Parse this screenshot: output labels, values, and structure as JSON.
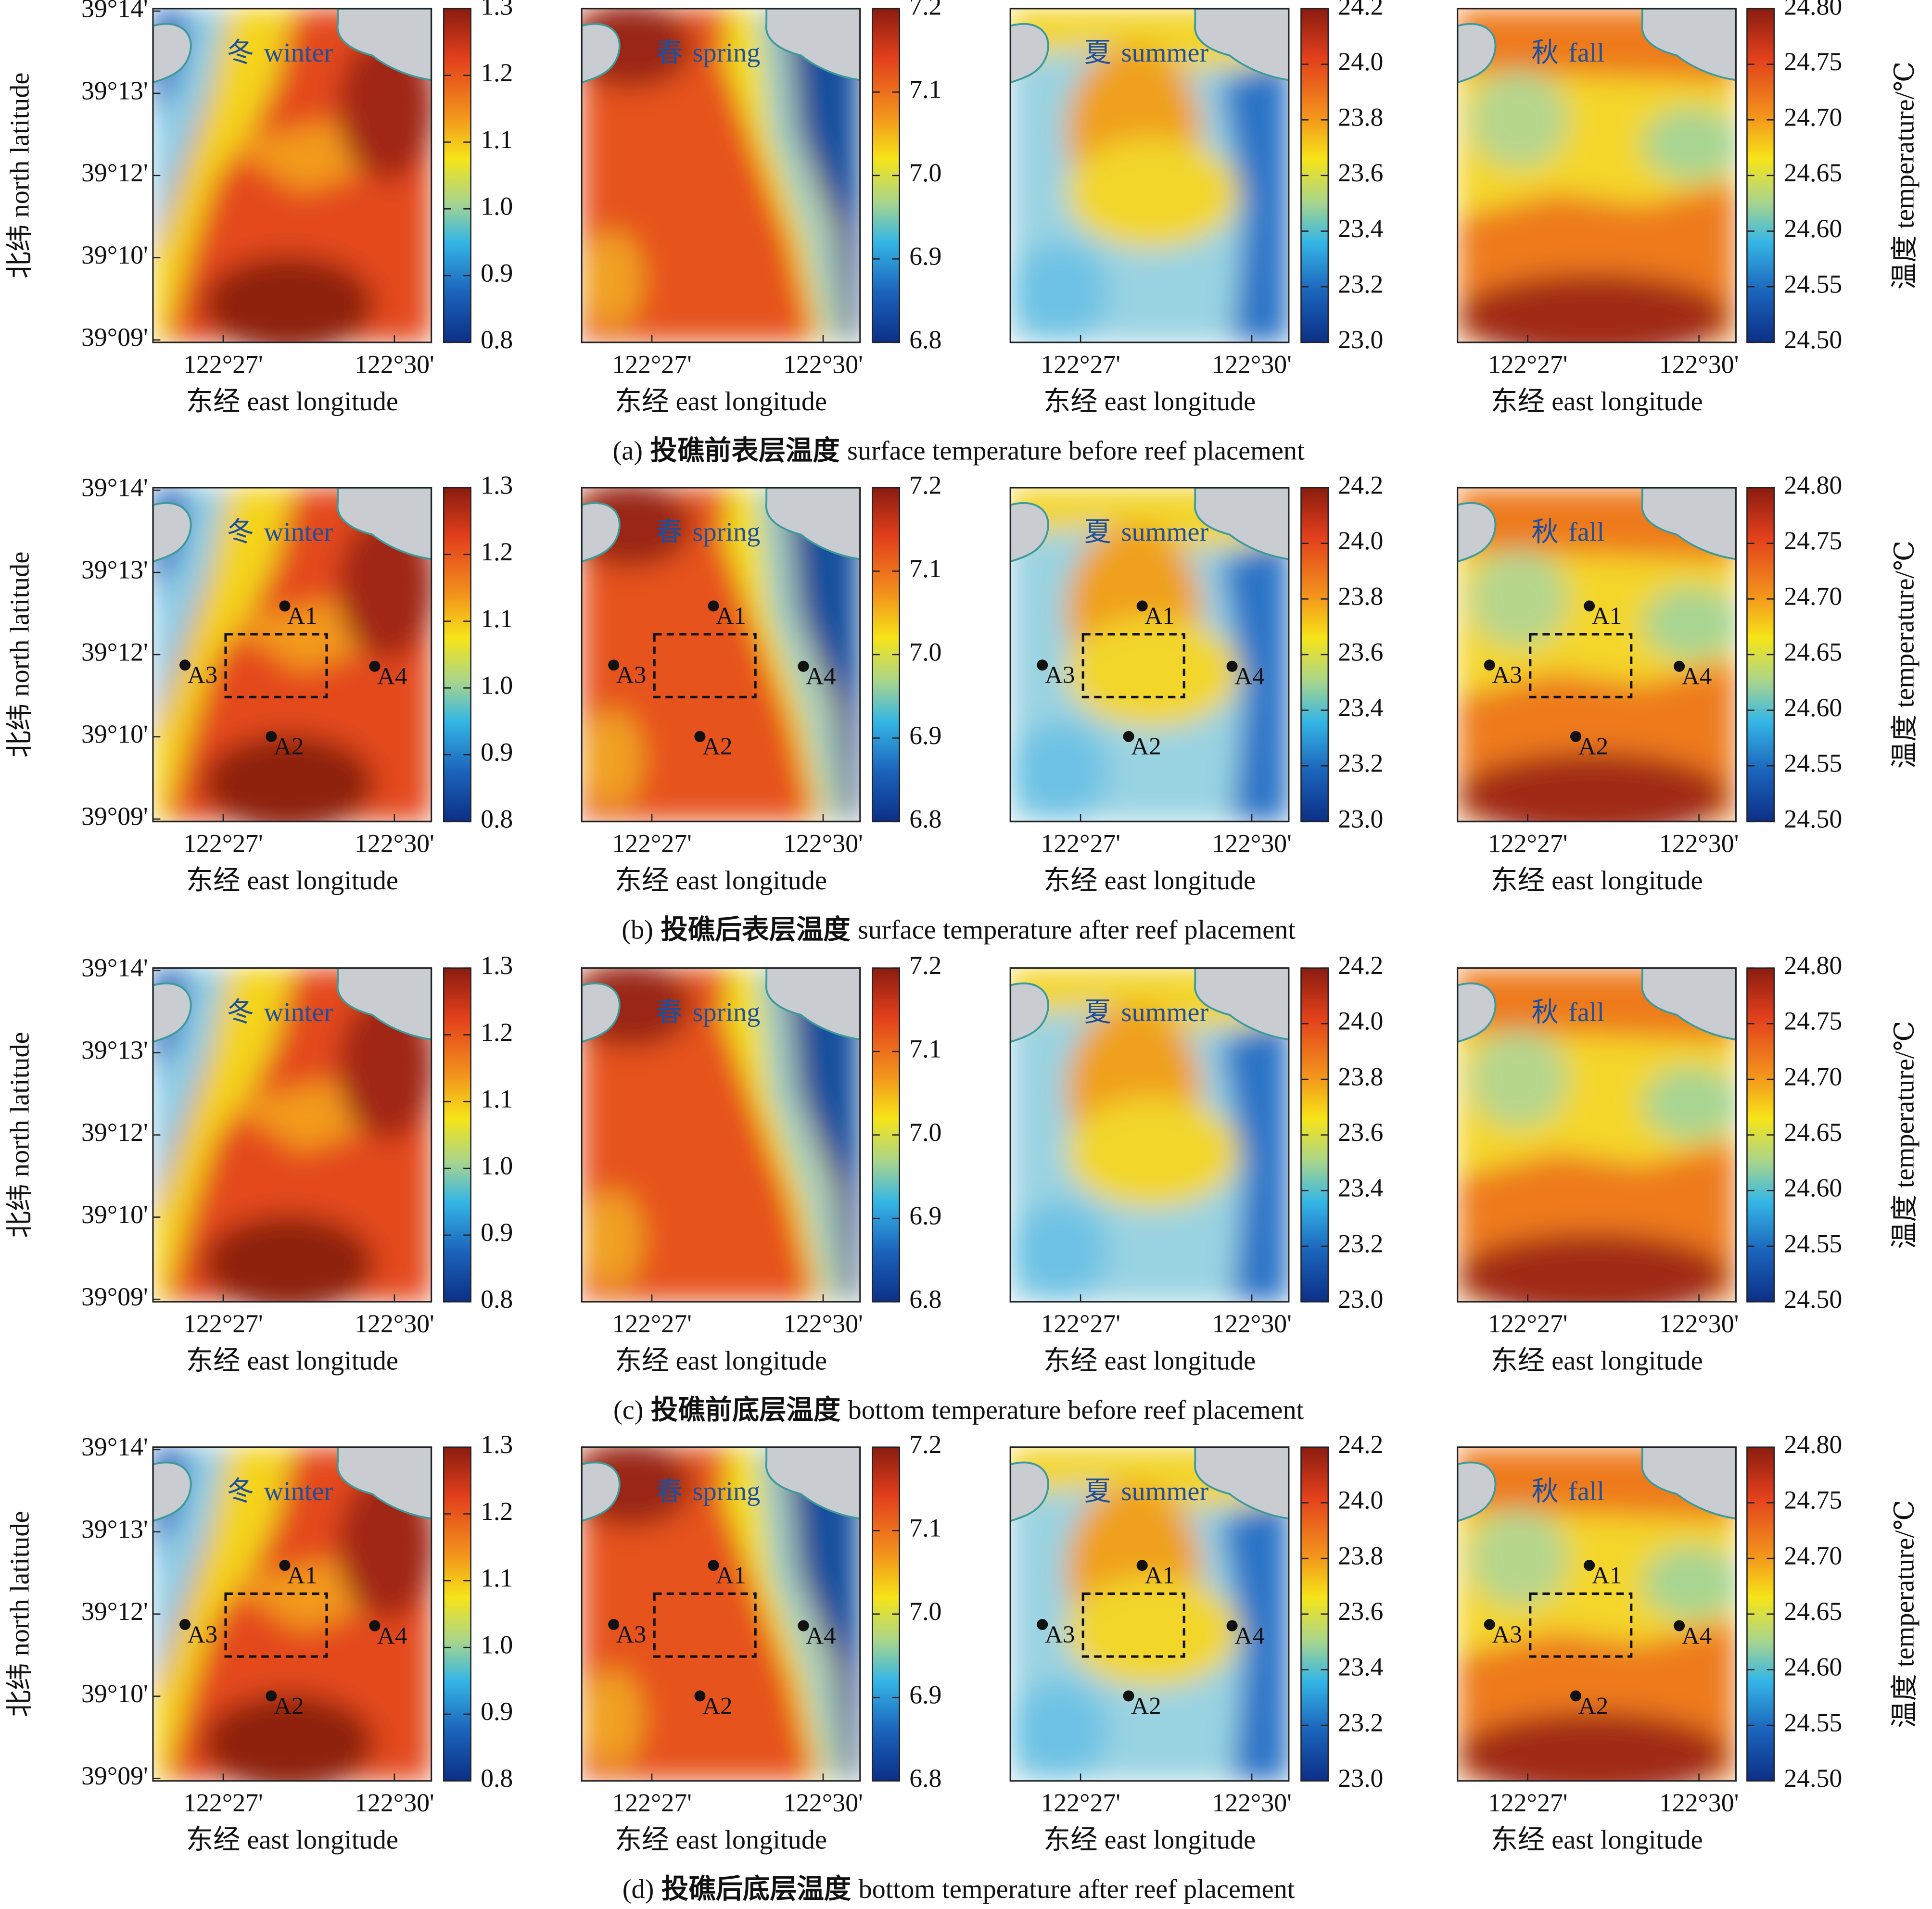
{
  "rows": [
    {
      "tag": "(a)",
      "title_cn": "投礁前表层温度",
      "title_en": "surface temperature before reef placement",
      "show_sites": false
    },
    {
      "tag": "(b)",
      "title_cn": "投礁后表层温度",
      "title_en": "surface temperature after reef placement",
      "show_sites": true
    },
    {
      "tag": "(c)",
      "title_cn": "投礁前底层温度",
      "title_en": "bottom temperature before reef placement",
      "show_sites": false
    },
    {
      "tag": "(d)",
      "title_cn": "投礁后底层温度",
      "title_en": "bottom temperature after reef placement",
      "show_sites": true
    }
  ],
  "seasons": [
    {
      "cn": "冬",
      "en": "winter",
      "colorbar_ticks": [
        "0.8",
        "0.9",
        "1.0",
        "1.1",
        "1.2",
        "1.3"
      ]
    },
    {
      "cn": "春",
      "en": "spring",
      "colorbar_ticks": [
        "6.8",
        "6.9",
        "7.0",
        "7.1",
        "7.2"
      ]
    },
    {
      "cn": "夏",
      "en": "summer",
      "colorbar_ticks": [
        "23.0",
        "23.2",
        "23.4",
        "23.6",
        "23.8",
        "24.0",
        "24.2"
      ]
    },
    {
      "cn": "秋",
      "en": "fall",
      "colorbar_ticks": [
        "24.50",
        "24.55",
        "24.60",
        "24.65",
        "24.70",
        "24.75",
        "24.80"
      ]
    }
  ],
  "x_axis": {
    "label": "东经 east longitude",
    "ticks": [
      "122°27'",
      "122°30'"
    ]
  },
  "y_axis": {
    "label": "北纬 north latitude",
    "ticks": [
      "39°09'",
      "39°10'",
      "39°12'",
      "39°13'",
      "39°14'"
    ]
  },
  "colorbar_label": "温度 temperature/℃",
  "sites": [
    "A1",
    "A2",
    "A3",
    "A4"
  ]
}
